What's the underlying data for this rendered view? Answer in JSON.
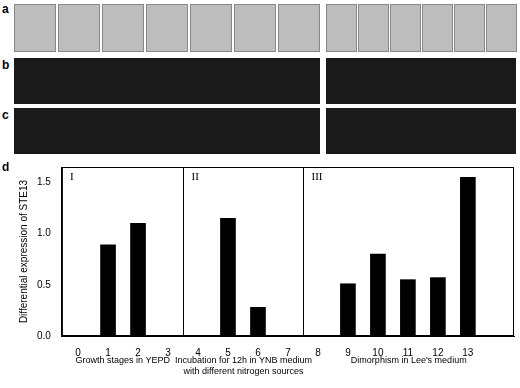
{
  "panels": [
    {
      "label": "a"
    },
    {
      "label": "b"
    },
    {
      "label": "c"
    }
  ],
  "chart_data": {
    "label": "d",
    "type": "bar",
    "x": [
      1,
      2,
      3,
      4,
      5,
      6,
      7,
      8,
      9,
      10,
      11,
      12,
      13
    ],
    "values": [
      0.89,
      1.1,
      0,
      0,
      1.15,
      0.28,
      0,
      0,
      0.51,
      0.8,
      0.55,
      0.57,
      1.55
    ],
    "color": "#000000",
    "xlim": [
      0,
      14
    ],
    "xticks": [
      0,
      1,
      2,
      3,
      4,
      5,
      6,
      7,
      8,
      9,
      10,
      11,
      12,
      13
    ],
    "ylim": [
      0,
      1.65
    ],
    "yticks": [
      {
        "value": 0,
        "label": "0.0"
      },
      {
        "value": 0.5,
        "label": "0.5"
      },
      {
        "value": 1,
        "label": "1.0"
      },
      {
        "value": 1.5,
        "label": "1.5"
      }
    ],
    "y_label": "Differential expression of STE13",
    "grid": false,
    "groups": [
      {
        "label": "I",
        "x_range": [
          1,
          3
        ],
        "text": [
          "Growth stages in YEPD"
        ]
      },
      {
        "label": "II",
        "x_range": [
          4,
          7
        ],
        "text": [
          "Incubation for 12h in YNB medium",
          "with different nitrogen sources"
        ]
      },
      {
        "label": "III",
        "x_range": [
          8,
          13
        ],
        "text": [
          "Dimorphism in Lee's medium"
        ]
      }
    ]
  }
}
